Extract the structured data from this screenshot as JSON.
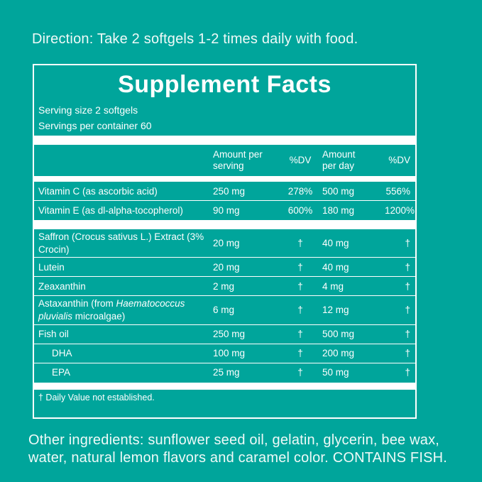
{
  "colors": {
    "background": "#00A59B",
    "text": "#FFFFFF"
  },
  "direction": "Direction: Take 2 softgels 1-2 times daily with food.",
  "supplement_facts": {
    "title": "Supplement Facts",
    "serving_size": "Serving size 2 softgels",
    "servings_per_container": "Servings per container 60",
    "headers": {
      "amount_per_serving": "Amount per\nserving",
      "dv_serving": "%DV",
      "amount_per_day": "Amount\nper day",
      "dv_day": "%DV"
    },
    "rows": [
      {
        "name": [
          {
            "t": "Vitamin C (as ascorbic acid)"
          }
        ],
        "indent": false,
        "amount_serving": "250 mg",
        "dv_serving": "278%",
        "amount_day": "500 mg",
        "dv_day": "556%",
        "sep_after": "thin"
      },
      {
        "name": [
          {
            "t": "Vitamin E (as dl-alpha-tocopherol)"
          }
        ],
        "indent": false,
        "amount_serving": "90 mg",
        "dv_serving": "600%",
        "amount_day": "180 mg",
        "dv_day": "1200%",
        "sep_after": "thick"
      },
      {
        "name": [
          {
            "t": "Saffron (Crocus sativus L.) Extract (3% Crocin)"
          }
        ],
        "indent": false,
        "amount_serving": "20 mg",
        "dv_serving": "†",
        "amount_day": "40 mg",
        "dv_day": "†",
        "sep_after": "thin"
      },
      {
        "name": [
          {
            "t": "Lutein"
          }
        ],
        "indent": false,
        "amount_serving": "20 mg",
        "dv_serving": "†",
        "amount_day": "40 mg",
        "dv_day": "†",
        "sep_after": "thin"
      },
      {
        "name": [
          {
            "t": "Zeaxanthin"
          }
        ],
        "indent": false,
        "amount_serving": "2 mg",
        "dv_serving": "†",
        "amount_day": "4 mg",
        "dv_day": "†",
        "sep_after": "thin"
      },
      {
        "name": [
          {
            "t": "Astaxanthin (from "
          },
          {
            "t": "Haematococcus pluvialis",
            "italic": true
          },
          {
            "t": " microalgae)"
          }
        ],
        "indent": false,
        "amount_serving": "6 mg",
        "dv_serving": "†",
        "amount_day": "12 mg",
        "dv_day": "†",
        "sep_after": "thin"
      },
      {
        "name": [
          {
            "t": "Fish oil"
          }
        ],
        "indent": false,
        "amount_serving": "250 mg",
        "dv_serving": "†",
        "amount_day": "500 mg",
        "dv_day": "†",
        "sep_after": "thin"
      },
      {
        "name": [
          {
            "t": "DHA"
          }
        ],
        "indent": true,
        "amount_serving": "100 mg",
        "dv_serving": "†",
        "amount_day": "200 mg",
        "dv_day": "†",
        "sep_after": "thin"
      },
      {
        "name": [
          {
            "t": "EPA"
          }
        ],
        "indent": true,
        "amount_serving": "25 mg",
        "dv_serving": "†",
        "amount_day": "50 mg",
        "dv_day": "†",
        "sep_after": "none"
      }
    ],
    "footnote": "† Daily Value not established."
  },
  "other_ingredients": "Other ingredients: sunflower seed oil, gelatin, glycerin, bee wax, water, natural lemon flavors and caramel color. CONTAINS FISH."
}
